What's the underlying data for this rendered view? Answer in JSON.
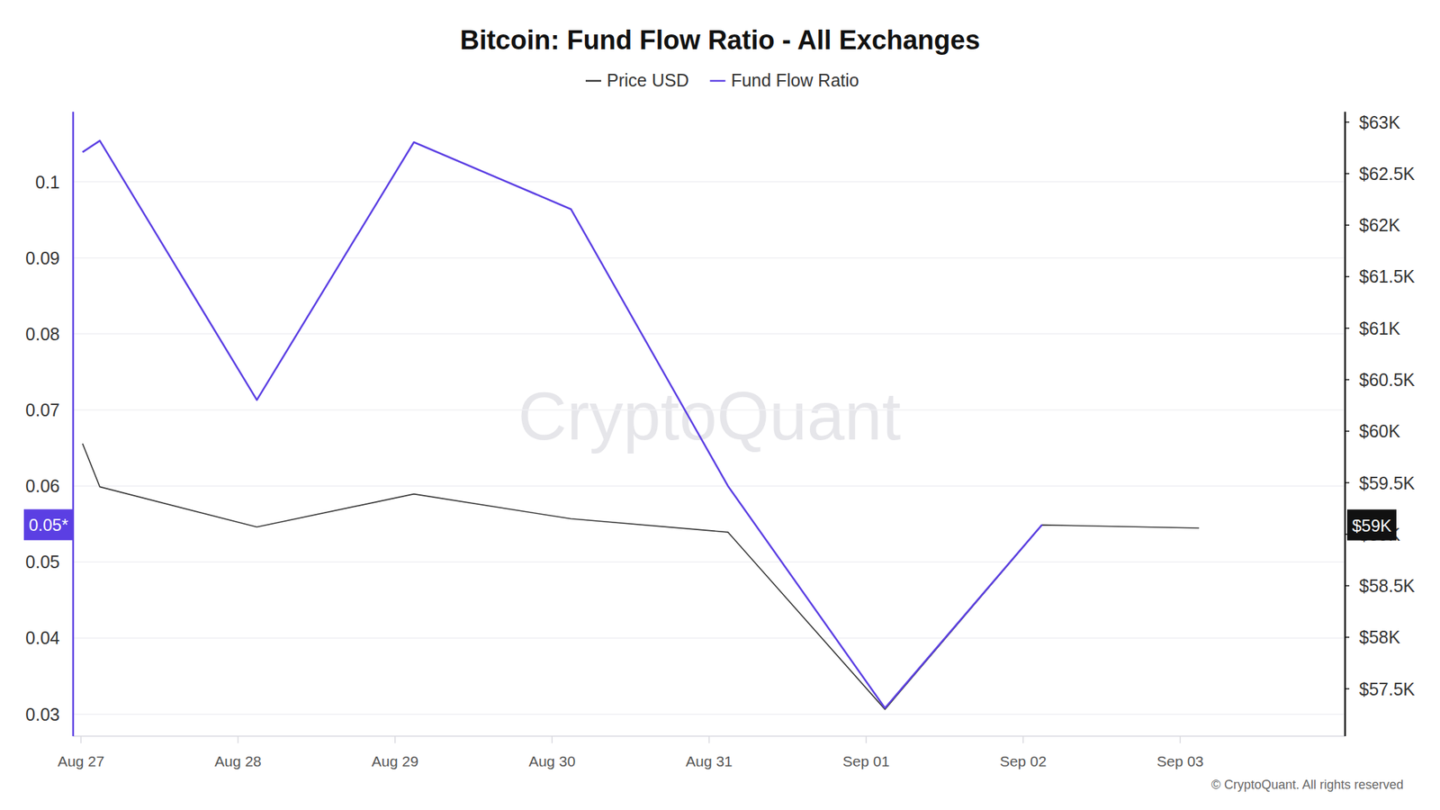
{
  "chart_data": {
    "type": "line",
    "title": "Bitcoin: Fund Flow Ratio - All Exchanges",
    "x": [
      0.01,
      0.12,
      1.12,
      2.12,
      3.12,
      4.12,
      5.12,
      6.12,
      7.12
    ],
    "xlim": [
      -0.05,
      8.05
    ],
    "xticks": [
      {
        "value": 0,
        "label": "Aug 27"
      },
      {
        "value": 1,
        "label": "Aug 28"
      },
      {
        "value": 2,
        "label": "Aug 29"
      },
      {
        "value": 3,
        "label": "Aug 30"
      },
      {
        "value": 4,
        "label": "Aug 31"
      },
      {
        "value": 5,
        "label": "Sep 01"
      },
      {
        "value": 6,
        "label": "Sep 02"
      },
      {
        "value": 7,
        "label": "Sep 03"
      }
    ],
    "series": [
      {
        "name": "Price USD",
        "color": "#333333",
        "axis": "y2",
        "values": [
          59880,
          59460,
          59070,
          59390,
          59150,
          59020,
          57300,
          59090,
          59060
        ]
      },
      {
        "name": "Fund Flow Ratio",
        "color": "#5b3fe3",
        "axis": "y",
        "values": [
          0.1039,
          0.1054,
          0.0713,
          0.1052,
          0.0964,
          0.06,
          0.0308,
          0.0549,
          null
        ]
      }
    ],
    "ylim": [
      0.0271,
      0.1092
    ],
    "yticks": [
      0.03,
      0.04,
      0.05,
      0.06,
      0.07,
      0.08,
      0.09,
      0.1
    ],
    "y2lim": [
      57040,
      63100
    ],
    "y2ticks": [
      {
        "value": 57500,
        "label": "$57.5K"
      },
      {
        "value": 58000,
        "label": "$58K"
      },
      {
        "value": 58500,
        "label": "$58.5K"
      },
      {
        "value": 59000,
        "label": "$59K"
      },
      {
        "value": 59500,
        "label": "$59.5K"
      },
      {
        "value": 60000,
        "label": "$60K"
      },
      {
        "value": 60500,
        "label": "$60.5K"
      },
      {
        "value": 61000,
        "label": "$61K"
      },
      {
        "value": 61500,
        "label": "$61.5K"
      },
      {
        "value": 62000,
        "label": "$62K"
      },
      {
        "value": 62500,
        "label": "$62.5K"
      },
      {
        "value": 63000,
        "label": "$63K"
      }
    ],
    "annotations": [
      {
        "text": "0.05*",
        "value": 0.0549,
        "axis": "y"
      },
      {
        "text": "$59K",
        "value": 59090,
        "axis": "y2"
      }
    ],
    "watermark": "CryptoQuant",
    "source": "© CryptoQuant. All rights reserved",
    "grid": true,
    "legend": "top"
  }
}
